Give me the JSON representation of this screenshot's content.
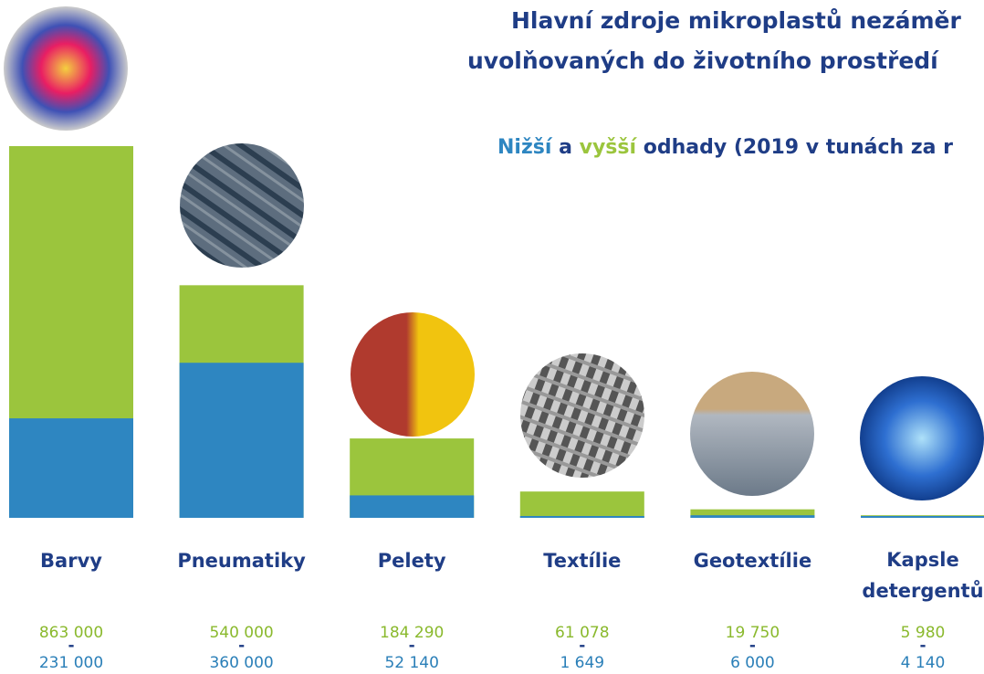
{
  "chart_data": {
    "type": "bar",
    "title": [
      "Hlavní zdroje mikroplastů nezáměr",
      "uvolňovaných do životního prostředí"
    ],
    "subtitle_parts": {
      "joiner": "a",
      "rest": "odhady (2019 v tunách za r"
    },
    "range_separator": "-",
    "categories": [
      "Barvy",
      "Pneumatiky",
      "Pelety",
      "Textílie",
      "Geotextílie",
      "Kapsle detergentů"
    ],
    "series": [
      {
        "name": "Nižší",
        "color": "#2e86c1",
        "label_color": "#2a7fb8",
        "values": [
          231000,
          360000,
          52140,
          1649,
          6000,
          4140
        ],
        "value_labels": [
          "231 000",
          "360 000",
          "52 140",
          "1 649",
          "6 000",
          "4 140"
        ]
      },
      {
        "name": "vyšší",
        "color": "#9bc53d",
        "label_color": "#8ab92d",
        "values": [
          863000,
          540000,
          184290,
          61078,
          19750,
          5980
        ],
        "value_labels": [
          "863 000",
          "540 000",
          "184 290",
          "61 078",
          "19 750",
          "5 980"
        ]
      }
    ]
  }
}
